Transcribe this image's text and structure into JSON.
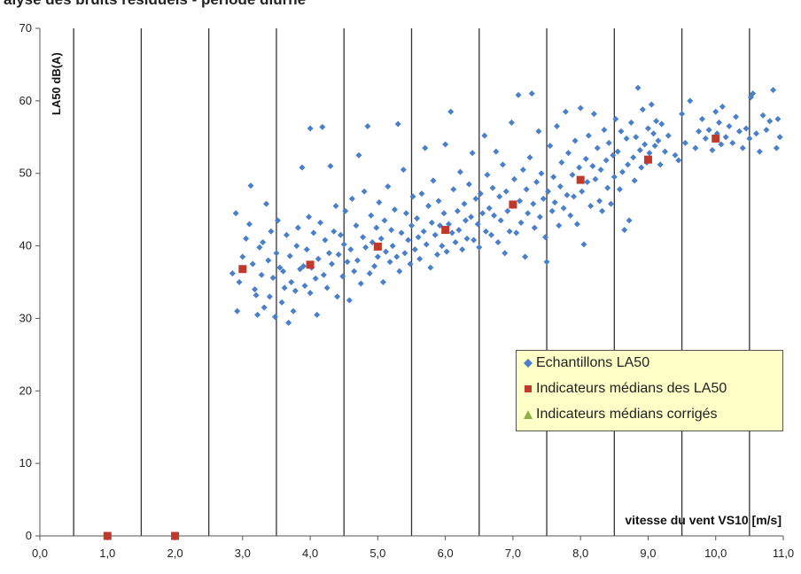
{
  "page": {
    "title_fragment": "alyse des bruits résiduels - période diurne"
  },
  "chart_data": {
    "type": "scatter",
    "ylabel": "LA50 dB(A)",
    "xlabel": "vitesse du vent  VS10 [m/s]",
    "xlim": [
      0,
      11
    ],
    "ylim": [
      0,
      70
    ],
    "x_ticks": [
      "0,0",
      "1,0",
      "2,0",
      "3,0",
      "4,0",
      "5,0",
      "6,0",
      "7,0",
      "8,0",
      "9,0",
      "10,0",
      "11,0"
    ],
    "y_ticks": [
      "0",
      "10",
      "20",
      "30",
      "40",
      "50",
      "60",
      "70"
    ],
    "vertical_gridlines_at": [
      0.5,
      1.5,
      2.5,
      3.5,
      4.5,
      5.5,
      6.5,
      7.5,
      8.5,
      9.5,
      10.5
    ],
    "legend_position": "bottom-right",
    "colors": {
      "samples": "#4a7fc9",
      "medians": "#c0392b",
      "corrected": "#8cb04a",
      "legend_bg": "#ffffc8"
    },
    "series": [
      {
        "name": "Echantillons LA50",
        "marker": "diamond",
        "points": [
          [
            2.85,
            36.2
          ],
          [
            2.9,
            44.5
          ],
          [
            2.92,
            31.0
          ],
          [
            2.95,
            35.0
          ],
          [
            3.0,
            38.5
          ],
          [
            3.05,
            41.0
          ],
          [
            3.1,
            43.0
          ],
          [
            3.12,
            48.3
          ],
          [
            3.15,
            37.5
          ],
          [
            3.18,
            34.0
          ],
          [
            3.2,
            33.2
          ],
          [
            3.22,
            30.5
          ],
          [
            3.25,
            39.8
          ],
          [
            3.28,
            36.0
          ],
          [
            3.3,
            40.5
          ],
          [
            3.32,
            31.5
          ],
          [
            3.35,
            45.8
          ],
          [
            3.38,
            38.0
          ],
          [
            3.4,
            33.0
          ],
          [
            3.42,
            42.0
          ],
          [
            3.45,
            35.6
          ],
          [
            3.48,
            30.2
          ],
          [
            3.5,
            39.0
          ],
          [
            3.52,
            43.5
          ],
          [
            3.55,
            37.0
          ],
          [
            3.58,
            32.2
          ],
          [
            3.6,
            36.5
          ],
          [
            3.62,
            34.2
          ],
          [
            3.65,
            41.5
          ],
          [
            3.68,
            29.4
          ],
          [
            3.7,
            38.6
          ],
          [
            3.72,
            35.0
          ],
          [
            3.75,
            31.0
          ],
          [
            3.78,
            33.8
          ],
          [
            3.8,
            40.0
          ],
          [
            3.82,
            42.5
          ],
          [
            3.85,
            36.8
          ],
          [
            3.88,
            50.8
          ],
          [
            3.9,
            37.2
          ],
          [
            3.92,
            34.5
          ],
          [
            3.95,
            39.5
          ],
          [
            3.98,
            44.0
          ],
          [
            4.0,
            56.2
          ],
          [
            4.0,
            33.5
          ],
          [
            4.02,
            37.0
          ],
          [
            4.05,
            41.8
          ],
          [
            4.08,
            35.5
          ],
          [
            4.1,
            30.5
          ],
          [
            4.12,
            38.2
          ],
          [
            4.15,
            43.2
          ],
          [
            4.18,
            56.4
          ],
          [
            4.2,
            36.0
          ],
          [
            4.22,
            40.8
          ],
          [
            4.25,
            34.2
          ],
          [
            4.28,
            39.0
          ],
          [
            4.3,
            51.0
          ],
          [
            4.32,
            37.5
          ],
          [
            4.35,
            42.0
          ],
          [
            4.38,
            45.5
          ],
          [
            4.4,
            33.0
          ],
          [
            4.42,
            38.8
          ],
          [
            4.45,
            41.5
          ],
          [
            4.48,
            35.8
          ],
          [
            4.5,
            40.2
          ],
          [
            4.52,
            44.8
          ],
          [
            4.55,
            37.8
          ],
          [
            4.58,
            32.5
          ],
          [
            4.6,
            39.5
          ],
          [
            4.62,
            46.5
          ],
          [
            4.65,
            36.5
          ],
          [
            4.68,
            42.8
          ],
          [
            4.7,
            38.0
          ],
          [
            4.72,
            52.5
          ],
          [
            4.75,
            34.8
          ],
          [
            4.78,
            41.2
          ],
          [
            4.8,
            47.5
          ],
          [
            4.82,
            39.8
          ],
          [
            4.85,
            56.5
          ],
          [
            4.88,
            36.2
          ],
          [
            4.9,
            44.2
          ],
          [
            4.92,
            40.5
          ],
          [
            4.95,
            37.2
          ],
          [
            4.98,
            42.5
          ],
          [
            5.0,
            38.5
          ],
          [
            5.02,
            46.0
          ],
          [
            5.05,
            41.0
          ],
          [
            5.08,
            35.0
          ],
          [
            5.1,
            43.5
          ],
          [
            5.12,
            39.2
          ],
          [
            5.15,
            48.2
          ],
          [
            5.18,
            37.8
          ],
          [
            5.2,
            42.2
          ],
          [
            5.22,
            40.0
          ],
          [
            5.25,
            45.0
          ],
          [
            5.28,
            38.5
          ],
          [
            5.3,
            56.8
          ],
          [
            5.32,
            36.5
          ],
          [
            5.35,
            41.8
          ],
          [
            5.38,
            50.5
          ],
          [
            5.4,
            39.0
          ],
          [
            5.42,
            44.5
          ],
          [
            5.45,
            40.8
          ],
          [
            5.48,
            37.5
          ],
          [
            5.5,
            42.8
          ],
          [
            5.52,
            46.8
          ],
          [
            5.55,
            39.5
          ],
          [
            5.58,
            43.8
          ],
          [
            5.6,
            41.2
          ],
          [
            5.62,
            38.2
          ],
          [
            5.65,
            47.2
          ],
          [
            5.68,
            42.0
          ],
          [
            5.7,
            53.5
          ],
          [
            5.72,
            40.2
          ],
          [
            5.75,
            45.5
          ],
          [
            5.78,
            37.0
          ],
          [
            5.8,
            43.2
          ],
          [
            5.82,
            49.0
          ],
          [
            5.85,
            41.5
          ],
          [
            5.88,
            38.8
          ],
          [
            5.9,
            46.2
          ],
          [
            5.92,
            42.8
          ],
          [
            5.95,
            40.0
          ],
          [
            5.98,
            44.5
          ],
          [
            6.0,
            54.0
          ],
          [
            6.02,
            39.2
          ],
          [
            6.05,
            43.0
          ],
          [
            6.08,
            58.5
          ],
          [
            6.1,
            41.8
          ],
          [
            6.12,
            47.8
          ],
          [
            6.15,
            40.5
          ],
          [
            6.18,
            44.8
          ],
          [
            6.2,
            42.2
          ],
          [
            6.22,
            50.2
          ],
          [
            6.25,
            39.5
          ],
          [
            6.28,
            45.8
          ],
          [
            6.3,
            43.5
          ],
          [
            6.32,
            41.0
          ],
          [
            6.35,
            48.5
          ],
          [
            6.38,
            44.0
          ],
          [
            6.4,
            52.8
          ],
          [
            6.42,
            40.8
          ],
          [
            6.45,
            46.5
          ],
          [
            6.48,
            43.0
          ],
          [
            6.5,
            39.8
          ],
          [
            6.52,
            47.2
          ],
          [
            6.55,
            44.5
          ],
          [
            6.58,
            55.2
          ],
          [
            6.6,
            42.0
          ],
          [
            6.62,
            49.8
          ],
          [
            6.65,
            45.2
          ],
          [
            6.68,
            41.5
          ],
          [
            6.7,
            48.0
          ],
          [
            6.72,
            44.2
          ],
          [
            6.75,
            53.0
          ],
          [
            6.78,
            40.5
          ],
          [
            6.8,
            46.8
          ],
          [
            6.82,
            43.5
          ],
          [
            6.85,
            51.2
          ],
          [
            6.88,
            39.0
          ],
          [
            6.9,
            47.5
          ],
          [
            6.92,
            44.8
          ],
          [
            6.95,
            42.0
          ],
          [
            6.98,
            57.0
          ],
          [
            7.0,
            45.5
          ],
          [
            7.02,
            49.2
          ],
          [
            7.05,
            41.8
          ],
          [
            7.08,
            60.8
          ],
          [
            7.1,
            46.2
          ],
          [
            7.12,
            43.2
          ],
          [
            7.15,
            50.5
          ],
          [
            7.18,
            38.5
          ],
          [
            7.2,
            47.8
          ],
          [
            7.22,
            44.5
          ],
          [
            7.25,
            52.2
          ],
          [
            7.28,
            61.0
          ],
          [
            7.3,
            45.8
          ],
          [
            7.32,
            42.5
          ],
          [
            7.35,
            48.8
          ],
          [
            7.38,
            55.8
          ],
          [
            7.4,
            44.0
          ],
          [
            7.42,
            50.0
          ],
          [
            7.45,
            46.5
          ],
          [
            7.48,
            41.2
          ],
          [
            7.5,
            37.8
          ],
          [
            7.52,
            47.5
          ],
          [
            7.55,
            53.8
          ],
          [
            7.58,
            44.8
          ],
          [
            7.6,
            49.5
          ],
          [
            7.62,
            46.0
          ],
          [
            7.65,
            56.5
          ],
          [
            7.68,
            42.8
          ],
          [
            7.7,
            48.2
          ],
          [
            7.72,
            51.5
          ],
          [
            7.75,
            45.2
          ],
          [
            7.78,
            58.5
          ],
          [
            7.8,
            47.0
          ],
          [
            7.82,
            52.8
          ],
          [
            7.85,
            44.2
          ],
          [
            7.88,
            49.8
          ],
          [
            7.9,
            46.8
          ],
          [
            7.92,
            54.5
          ],
          [
            7.95,
            43.0
          ],
          [
            7.98,
            50.8
          ],
          [
            8.0,
            59.0
          ],
          [
            8.02,
            47.5
          ],
          [
            8.05,
            40.2
          ],
          [
            8.08,
            52.0
          ],
          [
            8.1,
            48.8
          ],
          [
            8.12,
            55.2
          ],
          [
            8.15,
            45.5
          ],
          [
            8.18,
            51.0
          ],
          [
            8.2,
            58.2
          ],
          [
            8.22,
            49.2
          ],
          [
            8.25,
            53.5
          ],
          [
            8.28,
            46.2
          ],
          [
            8.3,
            50.5
          ],
          [
            8.32,
            44.8
          ],
          [
            8.35,
            56.0
          ],
          [
            8.38,
            51.8
          ],
          [
            8.4,
            48.0
          ],
          [
            8.42,
            54.2
          ],
          [
            8.45,
            45.8
          ],
          [
            8.48,
            52.5
          ],
          [
            8.5,
            49.5
          ],
          [
            8.52,
            57.5
          ],
          [
            8.55,
            53.0
          ],
          [
            8.58,
            47.8
          ],
          [
            8.6,
            55.8
          ],
          [
            8.62,
            50.2
          ],
          [
            8.65,
            42.2
          ],
          [
            8.68,
            54.8
          ],
          [
            8.7,
            51.2
          ],
          [
            8.72,
            43.5
          ],
          [
            8.75,
            57.0
          ],
          [
            8.78,
            52.2
          ],
          [
            8.8,
            49.0
          ],
          [
            8.82,
            55.0
          ],
          [
            8.85,
            61.8
          ],
          [
            8.88,
            53.2
          ],
          [
            8.9,
            50.8
          ],
          [
            8.92,
            58.8
          ],
          [
            8.95,
            54.0
          ],
          [
            8.98,
            51.5
          ],
          [
            9.0,
            56.2
          ],
          [
            9.02,
            52.8
          ],
          [
            9.05,
            59.5
          ],
          [
            9.08,
            55.5
          ],
          [
            9.1,
            53.8
          ],
          [
            9.12,
            57.2
          ],
          [
            9.15,
            54.5
          ],
          [
            9.18,
            51.2
          ],
          [
            9.2,
            56.8
          ],
          [
            9.25,
            53.0
          ],
          [
            9.3,
            55.2
          ],
          [
            9.4,
            52.5
          ],
          [
            9.45,
            51.8
          ],
          [
            9.5,
            58.2
          ],
          [
            9.55,
            54.2
          ],
          [
            9.62,
            60.0
          ],
          [
            9.7,
            53.5
          ],
          [
            9.75,
            55.8
          ],
          [
            9.8,
            57.5
          ],
          [
            9.85,
            54.8
          ],
          [
            9.9,
            56.0
          ],
          [
            9.95,
            53.2
          ],
          [
            10.0,
            58.5
          ],
          [
            10.02,
            55.5
          ],
          [
            10.05,
            57.0
          ],
          [
            10.08,
            54.0
          ],
          [
            10.1,
            59.2
          ],
          [
            10.15,
            55.0
          ],
          [
            10.2,
            56.5
          ],
          [
            10.25,
            54.2
          ],
          [
            10.3,
            57.8
          ],
          [
            10.35,
            55.8
          ],
          [
            10.4,
            53.5
          ],
          [
            10.45,
            56.2
          ],
          [
            10.5,
            54.8
          ],
          [
            10.52,
            60.5
          ],
          [
            10.55,
            61.0
          ],
          [
            10.6,
            55.5
          ],
          [
            10.65,
            53.0
          ],
          [
            10.7,
            58.0
          ],
          [
            10.75,
            56.0
          ],
          [
            10.8,
            57.2
          ],
          [
            10.85,
            61.5
          ],
          [
            10.9,
            53.5
          ],
          [
            10.92,
            57.5
          ],
          [
            10.95,
            55.0
          ]
        ]
      },
      {
        "name": "Indicateurs médians des LA50",
        "marker": "square",
        "points": [
          [
            1.0,
            0.0
          ],
          [
            2.0,
            0.0
          ],
          [
            3.0,
            36.8
          ],
          [
            4.0,
            37.4
          ],
          [
            5.0,
            39.9
          ],
          [
            6.0,
            42.2
          ],
          [
            7.0,
            45.7
          ],
          [
            8.0,
            49.1
          ],
          [
            9.0,
            51.9
          ],
          [
            10.0,
            54.8
          ]
        ]
      },
      {
        "name": "Indicateurs médians corrigés",
        "marker": "triangle",
        "points": []
      }
    ]
  }
}
